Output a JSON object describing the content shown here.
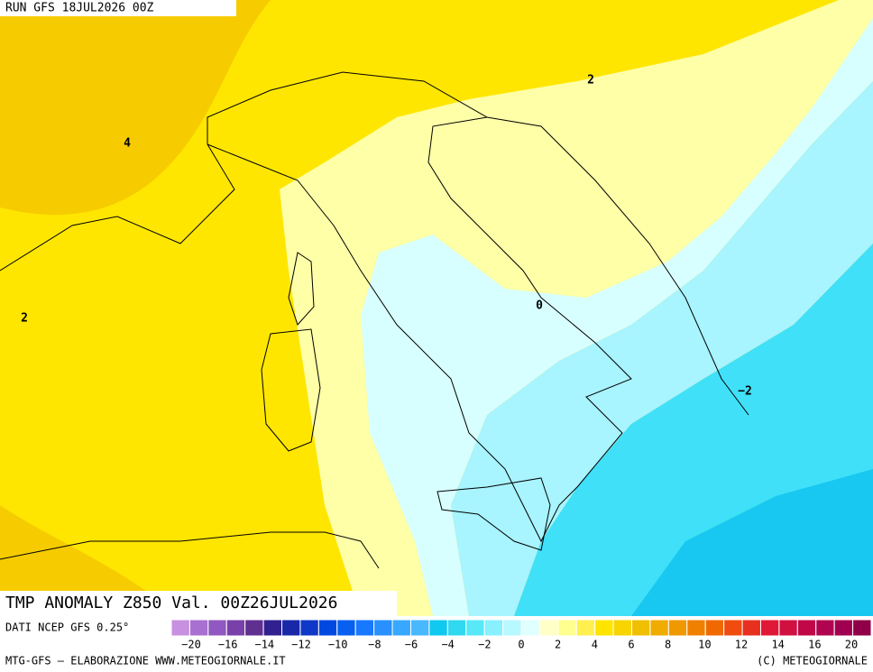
{
  "header": {
    "run": "RUN GFS 18JUL2026 00Z"
  },
  "map": {
    "title": "TMP ANOMALY Z850 Val. 00Z26JUL2026",
    "contour_labels": [
      "4",
      "2",
      "2",
      "0",
      "−2"
    ]
  },
  "colorbar": {
    "source": "DATI NCEP GFS 0.25°",
    "colors": [
      "#c890e0",
      "#a870d0",
      "#9058c0",
      "#7840a8",
      "#603090",
      "#302090",
      "#1828a8",
      "#1038c8",
      "#0048e0",
      "#0860f0",
      "#1878ff",
      "#2890ff",
      "#38a8ff",
      "#48b8ff",
      "#10c8f0",
      "#30d8f0",
      "#58e8f8",
      "#88f0ff",
      "#b8f8ff",
      "#e0ffff",
      "#ffffc8",
      "#ffff90",
      "#fff050",
      "#ffe400",
      "#f8d400",
      "#f0c000",
      "#f0ac00",
      "#f09800",
      "#f08000",
      "#f06800",
      "#f04c10",
      "#e83020",
      "#e01838",
      "#d01040",
      "#c00848",
      "#b00450",
      "#a00050",
      "#900048"
    ],
    "ticks": [
      "−20",
      "−16",
      "−14",
      "−12",
      "−10",
      "−8",
      "−6",
      "−4",
      "−2",
      "0",
      "2",
      "4",
      "6",
      "8",
      "10",
      "12",
      "14",
      "16",
      "20"
    ]
  },
  "footer": {
    "left": "MTG-GFS — ELABORAZIONE WWW.METEOGIORNALE.IT",
    "right": "(C) METEOGIORNALE"
  }
}
